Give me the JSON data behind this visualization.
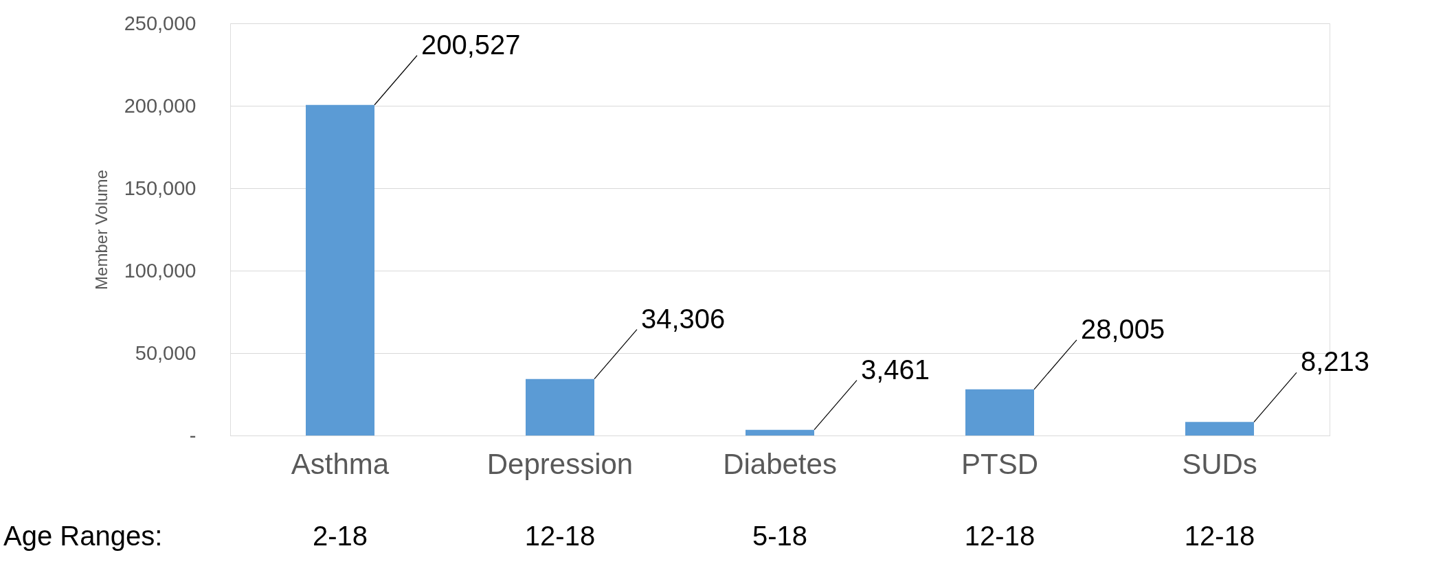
{
  "chart_data": {
    "type": "bar",
    "ylabel": "Member Volume",
    "categories": [
      "Asthma",
      "Depression",
      "Diabetes",
      "PTSD",
      "SUDs"
    ],
    "values": [
      200527,
      34306,
      3461,
      28005,
      8213
    ],
    "value_labels": [
      "200,527",
      "34,306",
      "3,461",
      "28,005",
      "8,213"
    ],
    "color": "#5b9bd5",
    "ylim": [
      0,
      250000
    ],
    "yticks": [
      {
        "value": 0,
        "label": "-"
      },
      {
        "value": 50000,
        "label": "50,000"
      },
      {
        "value": 100000,
        "label": "100,000"
      },
      {
        "value": 150000,
        "label": "150,000"
      },
      {
        "value": 200000,
        "label": "200,000"
      },
      {
        "value": 250000,
        "label": "250,000"
      }
    ],
    "grid": "y",
    "annotations": [
      "Age Ranges:",
      "2-18",
      "12-18",
      "5-18",
      "12-18",
      "12-18"
    ]
  }
}
